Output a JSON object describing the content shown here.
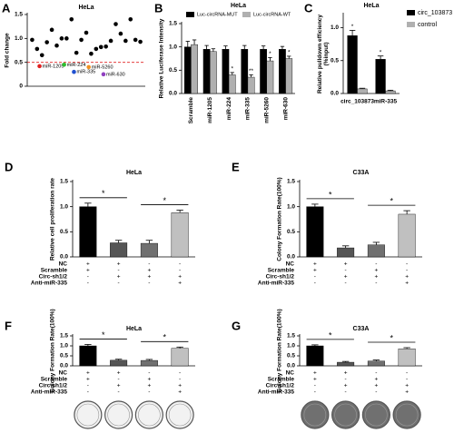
{
  "chart_data": [
    {
      "panel": "A",
      "type": "scatter",
      "title": "HeLa",
      "ylabel": "Fold change",
      "x": [
        1,
        2,
        3,
        4,
        5,
        6,
        7,
        8,
        9,
        10,
        11,
        12,
        13,
        14,
        15,
        16,
        17,
        18,
        19,
        20,
        21,
        22,
        23
      ],
      "values": [
        0.97,
        0.78,
        0.65,
        0.92,
        1.18,
        0.85,
        1.0,
        1.0,
        1.4,
        0.7,
        0.97,
        1.12,
        0.68,
        0.78,
        0.82,
        0.83,
        0.95,
        1.3,
        1.1,
        0.95,
        1.4,
        0.97,
        0.93
      ],
      "color": "#000000",
      "points": [
        {
          "label": "miR-1205",
          "color": "#e02020",
          "x": 2.5,
          "y": 0.42
        },
        {
          "label": "miR-224",
          "color": "#2fbf2f",
          "x": 7.5,
          "y": 0.45
        },
        {
          "label": "miR-335",
          "color": "#2050d0",
          "x": 9.5,
          "y": 0.3
        },
        {
          "label": "miR-5260",
          "color": "#f09020",
          "x": 12.5,
          "y": 0.4
        },
        {
          "label": "miR-630",
          "color": "#9040c0",
          "x": 15.5,
          "y": 0.25
        }
      ],
      "reference_line": {
        "value": 0.5,
        "color": "#e02020"
      },
      "xlim": [
        0,
        24
      ],
      "ylim": [
        0,
        1.5
      ],
      "yticks": [
        0,
        0.5,
        {
          "value": 1,
          "label": "1.0"
        },
        1.5
      ]
    },
    {
      "panel": "B",
      "type": "bar",
      "title": "HeLa",
      "ylabel": "Relative Luciferase Intensity",
      "categories": [
        "Scramble",
        "miR-1205",
        "miR-224",
        "miR-335",
        "miR-5260",
        "miR-630"
      ],
      "series": [
        {
          "name": "Luc-circRNA-MUT",
          "color": "#000000",
          "values": [
            1.0,
            0.95,
            0.95,
            0.95,
            0.95,
            0.95
          ],
          "errors": [
            0.12,
            0.08,
            0.07,
            0.08,
            0.07,
            0.06
          ]
        },
        {
          "name": "Luc-circRNA-WT",
          "color": "#b0b0b0",
          "values": [
            1.05,
            0.9,
            0.4,
            0.35,
            0.7,
            0.75
          ],
          "errors": [
            0.1,
            0.06,
            0.05,
            0.05,
            0.07,
            0.05
          ]
        }
      ],
      "annotations": [
        {
          "series": 1,
          "index": 2,
          "text": "*"
        },
        {
          "series": 1,
          "index": 3,
          "text": "**"
        },
        {
          "series": 1,
          "index": 4,
          "text": "*"
        },
        {
          "series": 1,
          "index": 5,
          "text": "*"
        }
      ],
      "legend": "top",
      "ylim": [
        0,
        1.5
      ],
      "yticks": [
        {
          "value": 0,
          "label": "0.0"
        },
        0.5,
        {
          "value": 1,
          "label": "1.0"
        },
        1.5
      ]
    },
    {
      "panel": "C",
      "type": "bar",
      "title": "HeLa",
      "ylabel": [
        "Relative pulldown efficiency",
        "(%input)"
      ],
      "categories": [
        "circ_103873",
        "miR-335"
      ],
      "series": [
        {
          "name": "circ_103873",
          "color": "#000000",
          "values": [
            0.88,
            0.52
          ],
          "errors": [
            0.08,
            0.05
          ]
        },
        {
          "name": "control",
          "color": "#b0b0b0",
          "values": [
            0.07,
            0.04
          ],
          "errors": [
            0.01,
            0.01
          ]
        }
      ],
      "annotations": [
        {
          "series": 0,
          "index": 0,
          "text": "*"
        },
        {
          "series": 0,
          "index": 1,
          "text": "*"
        }
      ],
      "legend": "right",
      "ylim": [
        0,
        1.2
      ],
      "yticks": [
        {
          "value": 0,
          "label": "0.0"
        },
        0.5,
        {
          "value": 1,
          "label": "1.0"
        }
      ]
    },
    {
      "panel": "D",
      "type": "bar",
      "title": "HeLa",
      "ylabel": "Relative cell proliferation rate",
      "values": [
        1.0,
        0.28,
        0.27,
        0.88
      ],
      "errors": [
        0.07,
        0.05,
        0.06,
        0.05
      ],
      "colors": [
        "#000000",
        "#555555",
        "#707070",
        "#c0c0c0"
      ],
      "brackets": [
        {
          "bars": [
            0,
            1
          ],
          "text": "*"
        },
        {
          "bars": [
            2,
            3
          ],
          "text": "*"
        }
      ],
      "conditions": [
        {
          "name": "NC",
          "values": [
            "+",
            "+",
            "-",
            "-"
          ]
        },
        {
          "name": "Scramble",
          "values": [
            "+",
            "-",
            "+",
            "-"
          ]
        },
        {
          "name": "Circ-sh1/2",
          "values": [
            "-",
            "+",
            "+",
            "+"
          ]
        },
        {
          "name": "Anti-miR-335",
          "values": [
            "-",
            "-",
            "-",
            "+"
          ]
        }
      ],
      "ylim": [
        0,
        1.5
      ],
      "yticks": [
        {
          "value": 0,
          "label": "0.0"
        },
        0.5,
        {
          "value": 1,
          "label": "1.0"
        },
        1.5
      ]
    },
    {
      "panel": "E",
      "type": "bar",
      "title": "C33A",
      "ylabel": "Colony Formation Rate(100%)",
      "values": [
        1.0,
        0.18,
        0.24,
        0.85
      ],
      "errors": [
        0.05,
        0.04,
        0.05,
        0.07
      ],
      "colors": [
        "#000000",
        "#555555",
        "#707070",
        "#c0c0c0"
      ],
      "brackets": [
        {
          "bars": [
            0,
            1
          ],
          "text": "*"
        },
        {
          "bars": [
            2,
            3
          ],
          "text": "*"
        }
      ],
      "conditions": [
        {
          "name": "NC",
          "values": [
            "+",
            "+",
            "-",
            "-"
          ]
        },
        {
          "name": "Scramble",
          "values": [
            "+",
            "-",
            "+",
            "-"
          ]
        },
        {
          "name": "Circ-sh1/2",
          "values": [
            "-",
            "+",
            "+",
            "+"
          ]
        },
        {
          "name": "Anti-miR-335",
          "values": [
            "-",
            "-",
            "-",
            "+"
          ]
        }
      ],
      "ylim": [
        0,
        1.5
      ],
      "yticks": [
        {
          "value": 0,
          "label": "0.0"
        },
        0.5,
        {
          "value": 1,
          "label": "1.0"
        },
        1.5
      ]
    },
    {
      "panel": "F",
      "type": "bar",
      "title": "HeLa",
      "ylabel": "Colony Formation Rate(100%)",
      "values": [
        1.0,
        0.28,
        0.27,
        0.88
      ],
      "errors": [
        0.07,
        0.05,
        0.05,
        0.06
      ],
      "colors": [
        "#000000",
        "#555555",
        "#707070",
        "#c0c0c0"
      ],
      "brackets": [
        {
          "bars": [
            0,
            1
          ],
          "text": "*"
        },
        {
          "bars": [
            2,
            3
          ],
          "text": "*"
        }
      ],
      "conditions": [
        {
          "name": "NC",
          "values": [
            "+",
            "+",
            "-",
            "-"
          ]
        },
        {
          "name": "Scramble",
          "values": [
            "+",
            "-",
            "+",
            "-"
          ]
        },
        {
          "name": "Circ-sh1/2",
          "values": [
            "-",
            "+",
            "+",
            "+"
          ]
        },
        {
          "name": "Anti-miR-335",
          "values": [
            "-",
            "-",
            "-",
            "+"
          ]
        }
      ],
      "ylim": [
        0,
        1.5
      ],
      "yticks": [
        {
          "value": 0,
          "label": "0.0"
        },
        0.5,
        {
          "value": 1,
          "label": "1.0"
        },
        1.5
      ]
    },
    {
      "panel": "G",
      "type": "bar",
      "title": "C33A",
      "ylabel": "Colony Formation Rate(100%)",
      "values": [
        1.0,
        0.18,
        0.24,
        0.85
      ],
      "errors": [
        0.05,
        0.04,
        0.05,
        0.06
      ],
      "colors": [
        "#000000",
        "#555555",
        "#707070",
        "#c0c0c0"
      ],
      "brackets": [
        {
          "bars": [
            0,
            1
          ],
          "text": "*"
        },
        {
          "bars": [
            2,
            3
          ],
          "text": "*"
        }
      ],
      "conditions": [
        {
          "name": "NC",
          "values": [
            "+",
            "+",
            "-",
            "-"
          ]
        },
        {
          "name": "Scramble",
          "values": [
            "+",
            "-",
            "+",
            "-"
          ]
        },
        {
          "name": "Circ-sh1/2",
          "values": [
            "-",
            "+",
            "+",
            "+"
          ]
        },
        {
          "name": "Anti-miR-335",
          "values": [
            "-",
            "-",
            "-",
            "+"
          ]
        }
      ],
      "ylim": [
        0,
        1.5
      ],
      "yticks": [
        {
          "value": 0,
          "label": "0.0"
        },
        0.5,
        {
          "value": 1,
          "label": "1.0"
        },
        1.5
      ]
    }
  ]
}
